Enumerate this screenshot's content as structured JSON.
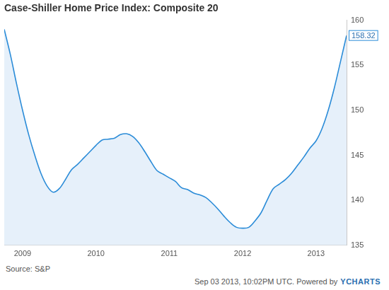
{
  "chart_data": {
    "type": "line",
    "title": "Case-Shiller Home Price Index: Composite 20",
    "source": "Source: S&P",
    "footer": "Sep 03 2013, 10:02PM UTC. Powered by",
    "logo": "YCHARTS",
    "categories": [
      null,
      null,
      null,
      "2009",
      null,
      null,
      null,
      null,
      null,
      null,
      null,
      null,
      null,
      null,
      null,
      "2010",
      null,
      null,
      null,
      null,
      null,
      null,
      null,
      null,
      null,
      null,
      null,
      "2011",
      null,
      null,
      null,
      null,
      null,
      null,
      null,
      null,
      null,
      null,
      null,
      "2012",
      null,
      null,
      null,
      null,
      null,
      null,
      null,
      null,
      null,
      null,
      null,
      "2013",
      null,
      null,
      null,
      null,
      null
    ],
    "values": [
      159.0,
      156.2,
      153.0,
      150.0,
      147.3,
      145.0,
      143.0,
      141.6,
      140.9,
      141.3,
      142.3,
      143.4,
      144.0,
      144.7,
      145.4,
      146.1,
      146.7,
      146.8,
      146.9,
      147.3,
      147.4,
      147.1,
      146.4,
      145.4,
      144.3,
      143.3,
      142.9,
      142.5,
      142.1,
      141.4,
      141.2,
      140.8,
      140.6,
      140.3,
      139.7,
      139.0,
      138.2,
      137.5,
      137.0,
      136.9,
      137.0,
      137.7,
      138.6,
      140.0,
      141.3,
      141.8,
      142.3,
      143.0,
      143.9,
      144.8,
      145.8,
      146.6,
      148.0,
      150.0,
      152.5,
      155.4,
      158.32
    ],
    "color": "#2b8cd8",
    "ylim": [
      135,
      160
    ],
    "yticks": [
      135,
      140,
      145,
      150,
      155,
      160
    ],
    "grid": false,
    "annotations": [
      {
        "value": 158.32,
        "label": "158.32"
      }
    ]
  }
}
